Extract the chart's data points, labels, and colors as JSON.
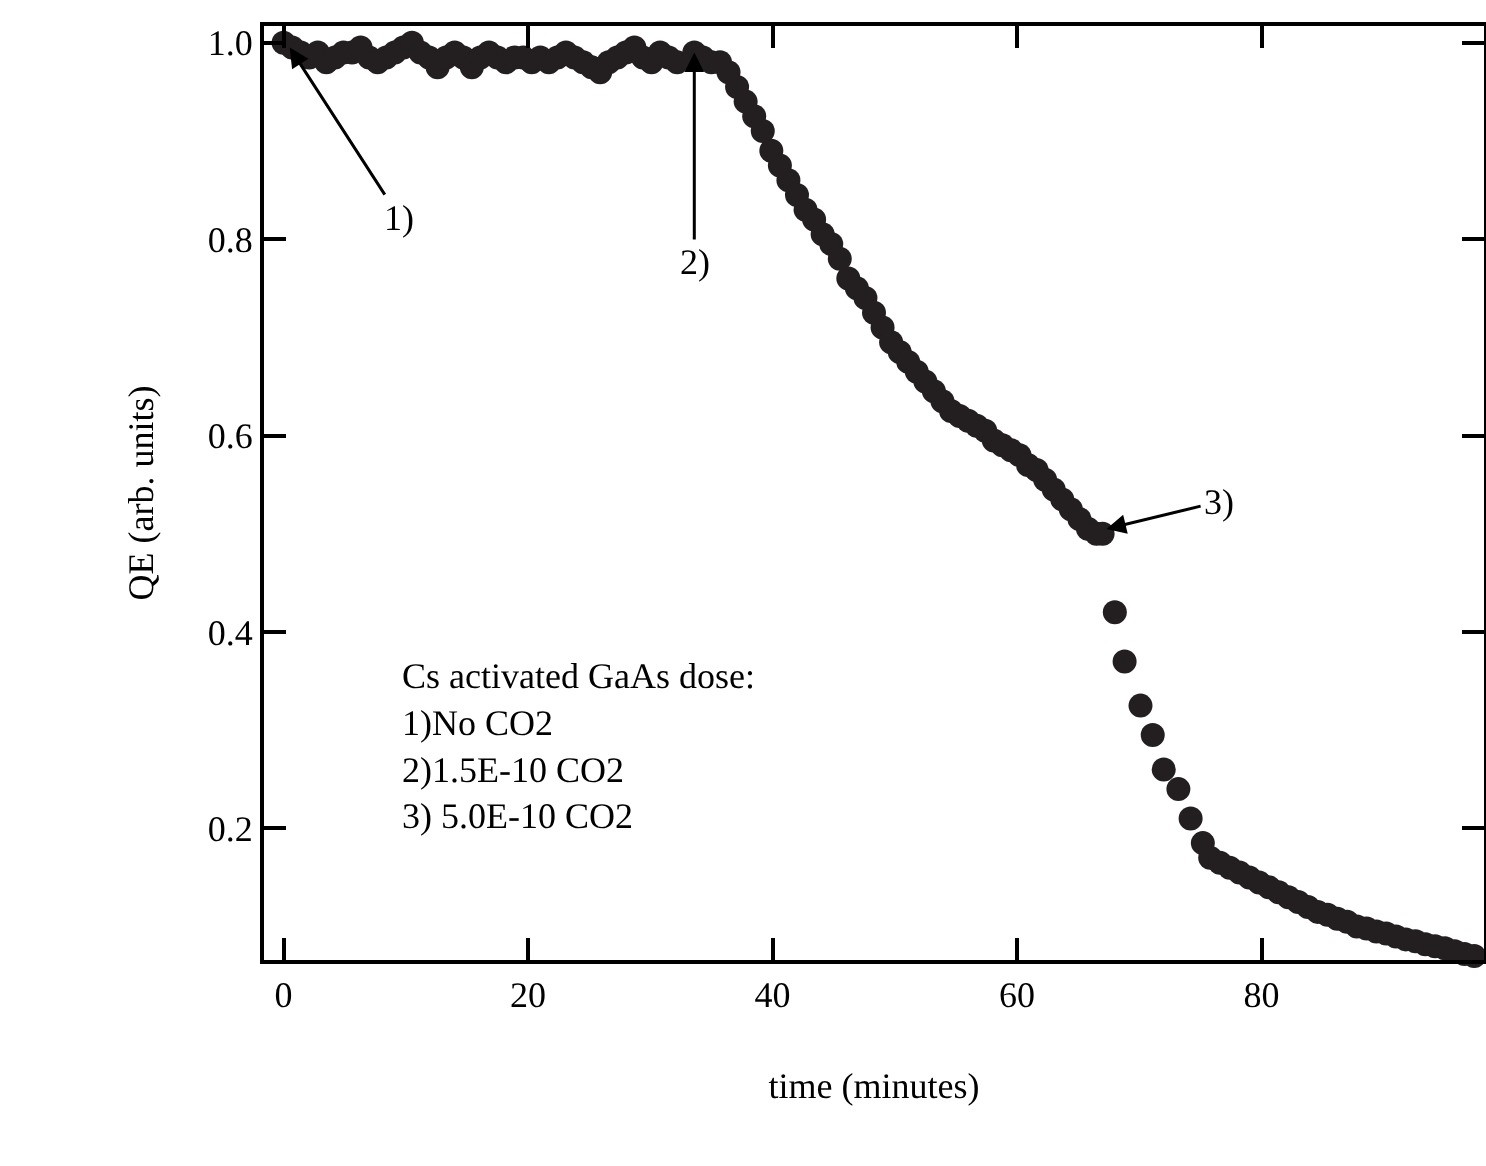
{
  "chart_data": {
    "type": "scatter",
    "xlabel": "time (minutes)",
    "ylabel": "QE (arb. units)",
    "xlim": [
      -1.6,
      98.2
    ],
    "ylim": [
      0.066,
      1.017
    ],
    "xticks": [
      0,
      20,
      40,
      60,
      80
    ],
    "yticks": [
      {
        "value": 0.2,
        "label": "0.2"
      },
      {
        "value": 0.4,
        "label": "0.4"
      },
      {
        "value": 0.6,
        "label": "0.6"
      },
      {
        "value": 0.8,
        "label": "0.8"
      },
      {
        "value": 1,
        "label": "1.0"
      }
    ],
    "grid": false,
    "marker": "circle",
    "series": [
      {
        "color": "#231f20",
        "x": [
          0,
          0.7,
          1.4,
          2.1,
          2.8,
          3.5,
          4.2,
          4.9,
          5.6,
          6.3,
          7.0,
          7.7,
          8.4,
          9.1,
          9.8,
          10.5,
          11.2,
          11.9,
          12.6,
          13.3,
          14.0,
          14.7,
          15.4,
          16.1,
          16.8,
          17.5,
          18.2,
          18.9,
          19.6,
          20.3,
          21.0,
          21.7,
          22.4,
          23.1,
          23.8,
          24.5,
          25.2,
          25.9,
          26.6,
          27.3,
          28.0,
          28.7,
          29.4,
          30.1,
          30.8,
          31.5,
          32.2,
          33.6,
          34.3,
          35.0,
          35.7,
          36.4,
          37.1,
          37.8,
          38.5,
          39.2,
          39.9,
          40.6,
          41.3,
          42,
          42.7,
          43.4,
          44.1,
          44.8,
          45.5,
          46.2,
          46.9,
          47.6,
          48.3,
          49,
          49.7,
          50.4,
          51.1,
          51.8,
          52.5,
          53.2,
          53.9,
          54.6,
          55.3,
          56,
          56.7,
          57.4,
          58.1,
          58.8,
          59.5,
          60.2,
          60.9,
          61.6,
          62.3,
          63,
          63.7,
          64.4,
          65.1,
          65.8,
          66.5,
          67,
          68,
          68.8,
          70.1,
          71.1,
          72,
          73.2,
          74.2,
          75.2,
          75.8,
          76.6,
          77.4,
          78.2,
          79,
          79.8,
          80.6,
          81.4,
          82.2,
          83,
          83.8,
          84.6,
          85.4,
          86.2,
          87,
          87.8,
          88.6,
          89.4,
          90.2,
          91,
          91.8,
          92.6,
          93.4,
          94.2,
          95,
          95.8,
          96.6,
          97.4
        ],
        "values": [
          1.0,
          0.995,
          0.99,
          0.985,
          0.99,
          0.98,
          0.985,
          0.99,
          0.99,
          0.995,
          0.985,
          0.98,
          0.985,
          0.99,
          0.995,
          1.0,
          0.99,
          0.985,
          0.975,
          0.985,
          0.99,
          0.985,
          0.975,
          0.985,
          0.99,
          0.985,
          0.98,
          0.985,
          0.985,
          0.98,
          0.985,
          0.98,
          0.985,
          0.99,
          0.985,
          0.98,
          0.975,
          0.97,
          0.98,
          0.985,
          0.99,
          0.995,
          0.985,
          0.98,
          0.99,
          0.985,
          0.98,
          0.99,
          0.985,
          0.98,
          0.98,
          0.97,
          0.955,
          0.94,
          0.925,
          0.91,
          0.89,
          0.875,
          0.86,
          0.845,
          0.83,
          0.82,
          0.805,
          0.795,
          0.78,
          0.76,
          0.75,
          0.74,
          0.725,
          0.71,
          0.695,
          0.685,
          0.675,
          0.665,
          0.655,
          0.645,
          0.635,
          0.625,
          0.62,
          0.615,
          0.61,
          0.605,
          0.595,
          0.59,
          0.585,
          0.58,
          0.57,
          0.565,
          0.555,
          0.545,
          0.535,
          0.525,
          0.515,
          0.505,
          0.5,
          0.5,
          0.42,
          0.37,
          0.325,
          0.295,
          0.26,
          0.24,
          0.21,
          0.185,
          0.17,
          0.165,
          0.16,
          0.155,
          0.15,
          0.145,
          0.14,
          0.135,
          0.13,
          0.125,
          0.12,
          0.115,
          0.112,
          0.108,
          0.105,
          0.1,
          0.098,
          0.095,
          0.093,
          0.09,
          0.087,
          0.085,
          0.082,
          0.08,
          0.078,
          0.075,
          0.072,
          0.07
        ]
      }
    ],
    "annotations": [
      {
        "text": "1)",
        "x": 0.5,
        "y": 0.995
      },
      {
        "text": "2)",
        "x": 33.6,
        "y": 0.99
      },
      {
        "text": "3)",
        "x": 67,
        "y": 0.504
      },
      "Cs activated GaAs dose:\n1)No CO2\n2)1.5E-10 CO2\n3) 5.0E-10 CO2"
    ]
  }
}
